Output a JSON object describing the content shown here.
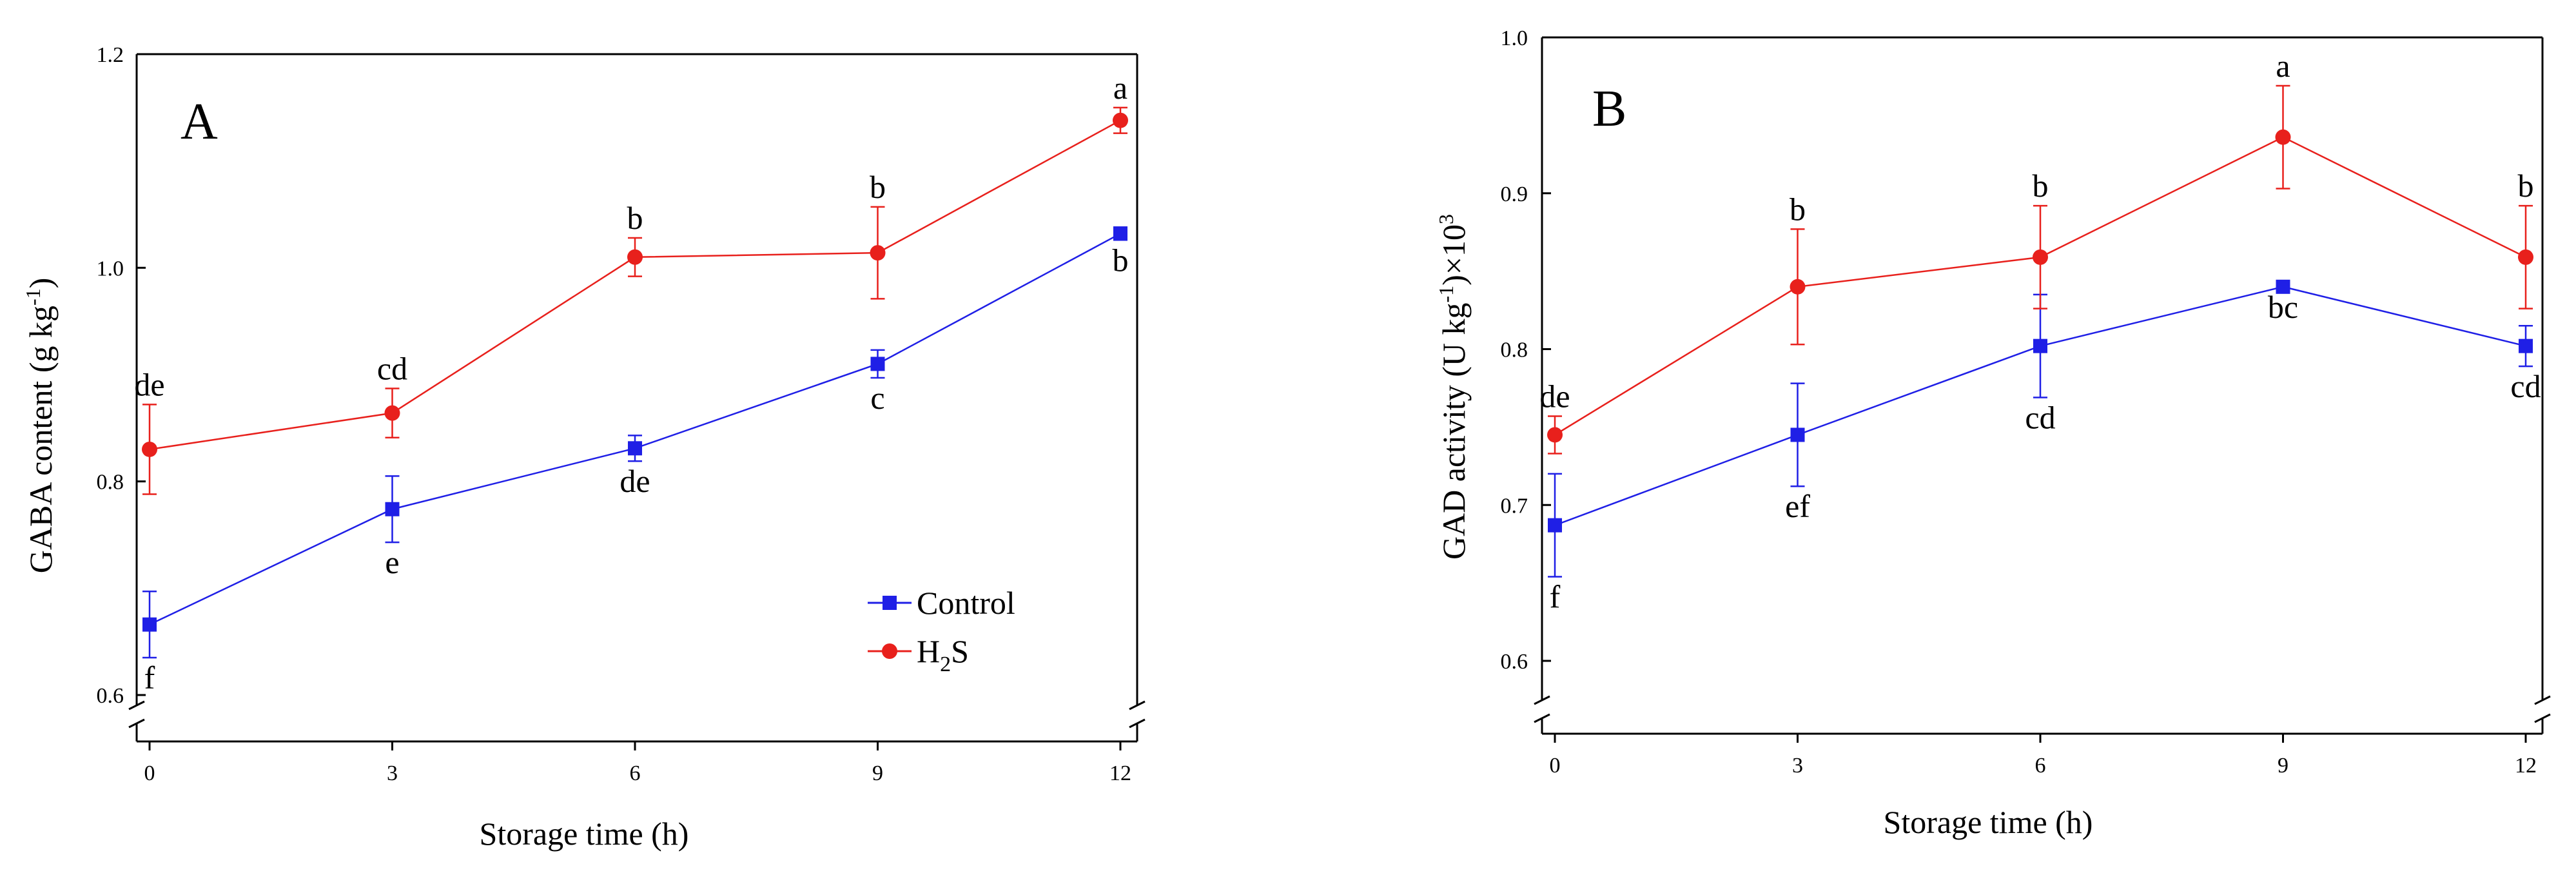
{
  "chart_data": [
    {
      "type": "line",
      "panel_label": "A",
      "title": "",
      "xlabel": "Storage time (h)",
      "ylabel_main": "GABA content (g kg",
      "ylabel_sup": "-1",
      "ylabel_end": ")",
      "x": [
        0,
        3,
        6,
        9,
        12
      ],
      "x_tick_labels": [
        "0",
        "3",
        "6",
        "9",
        "12"
      ],
      "xlim": [
        0,
        12
      ],
      "ylim": [
        0.6,
        1.2
      ],
      "y_ticks": [
        0.6,
        0.8,
        1.0,
        1.2
      ],
      "y_tick_labels": [
        "0.6",
        "0.8",
        "1.0",
        "1.2"
      ],
      "axis_break": true,
      "series": [
        {
          "name": "Control",
          "color": "#1f1fe6",
          "marker": "square",
          "values": [
            0.666,
            0.774,
            0.831,
            0.91,
            1.032
          ],
          "errors": [
            0.031,
            0.031,
            0.012,
            0.013,
            0.006
          ],
          "letters": [
            "f",
            "e",
            "de",
            "c",
            "b"
          ],
          "letter_pos": [
            "below",
            "below",
            "below",
            "below",
            "below"
          ]
        },
        {
          "name": "H2S",
          "legend_main": "H",
          "legend_sub": "2",
          "legend_end": "S",
          "color": "#e8201c",
          "marker": "circle",
          "values": [
            0.83,
            0.864,
            1.01,
            1.014,
            1.138
          ],
          "errors": [
            0.042,
            0.023,
            0.018,
            0.043,
            0.012
          ],
          "letters": [
            "de",
            "cd",
            "b",
            "b",
            "a"
          ],
          "letter_pos": [
            "above",
            "above",
            "above",
            "above",
            "above"
          ]
        }
      ],
      "legend": "bottom-right"
    },
    {
      "type": "line",
      "panel_label": "B",
      "title": "",
      "xlabel": "Storage time (h)",
      "ylabel_main": "GAD activity (U kg",
      "ylabel_sup": "-1",
      "ylabel_mid": ")×10",
      "ylabel_sup2": "3",
      "x": [
        0,
        3,
        6,
        9,
        12
      ],
      "x_tick_labels": [
        "0",
        "3",
        "6",
        "9",
        "12"
      ],
      "xlim": [
        0,
        12
      ],
      "ylim": [
        0.6,
        1.0
      ],
      "y_ticks": [
        0.6,
        0.7,
        0.8,
        0.9,
        1.0
      ],
      "y_tick_labels": [
        "0.6",
        "0.7",
        "0.8",
        "0.9",
        "1.0"
      ],
      "axis_break": true,
      "series": [
        {
          "name": "Control",
          "color": "#1f1fe6",
          "marker": "square",
          "values": [
            0.687,
            0.745,
            0.802,
            0.84,
            0.802
          ],
          "errors": [
            0.033,
            0.033,
            0.033,
            0.0,
            0.013
          ],
          "letters": [
            "f",
            "ef",
            "cd",
            "bc",
            "cd"
          ],
          "letter_pos": [
            "below",
            "below",
            "below",
            "below",
            "below"
          ]
        },
        {
          "name": "H2S",
          "color": "#e8201c",
          "marker": "circle",
          "values": [
            0.745,
            0.84,
            0.859,
            0.936,
            0.859
          ],
          "errors": [
            0.012,
            0.037,
            0.033,
            0.033,
            0.033
          ],
          "letters": [
            "de",
            "b",
            "b",
            "a",
            "b"
          ],
          "letter_pos": [
            "above",
            "above",
            "above",
            "above",
            "above"
          ]
        }
      ]
    }
  ]
}
